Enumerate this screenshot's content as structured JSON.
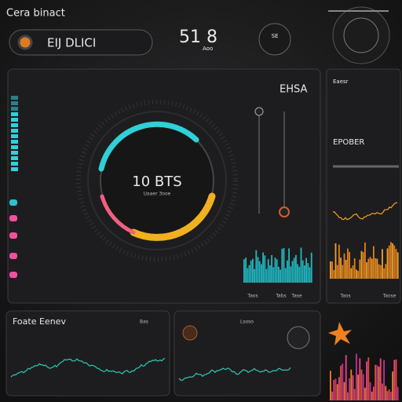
{
  "header": {
    "title": "Cera binact",
    "search": "EIJ DLICI",
    "stat": "51 8",
    "stat_unit": "Aoo",
    "badge": "SE"
  },
  "gauge": {
    "value": "10 BTS",
    "caption": "Uaaer 3ooe"
  },
  "main_panel": {
    "label": "EHSA",
    "axis_labels": [
      "Taos",
      "Tabs",
      "Tase"
    ]
  },
  "side_panel": {
    "label": "Eaesr",
    "section": "EPOBER",
    "axis_labels": [
      "Taos",
      "Taose"
    ]
  },
  "bottom_left_panel": {
    "title": "Foate Eenev",
    "tag": "Bas"
  },
  "bottom_middle_panel": {
    "tag": "Lsoso"
  }
}
